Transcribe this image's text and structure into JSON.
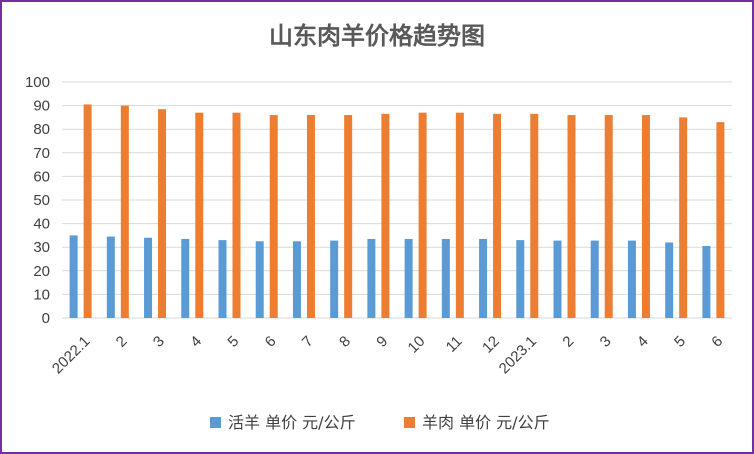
{
  "chart_data": {
    "type": "bar",
    "title": "山东肉羊价格趋势图",
    "xlabel": "",
    "ylabel": "",
    "ylim": [
      0,
      100
    ],
    "yticks": [
      0,
      10,
      20,
      30,
      40,
      50,
      60,
      70,
      80,
      90,
      100
    ],
    "grid": true,
    "legend_position": "bottom",
    "categories": [
      "2022.1",
      "2",
      "3",
      "4",
      "5",
      "6",
      "7",
      "8",
      "9",
      "10",
      "11",
      "12",
      "2023.1",
      "2",
      "3",
      "4",
      "5",
      "6"
    ],
    "series": [
      {
        "name": "活羊 单价 元/公斤",
        "color": "#5b9bd5",
        "values": [
          35,
          34.5,
          34,
          33.5,
          33,
          32.5,
          32.5,
          32.8,
          33.5,
          33.5,
          33.5,
          33.5,
          33,
          32.8,
          32.8,
          32.8,
          32,
          30.5
        ]
      },
      {
        "name": "羊肉 单价 元/公斤",
        "color": "#ed7d31",
        "values": [
          90.5,
          90,
          88.5,
          87,
          87,
          86,
          86,
          86,
          86.5,
          87,
          87,
          86.5,
          86.5,
          86,
          86,
          86,
          85,
          83
        ]
      }
    ]
  }
}
